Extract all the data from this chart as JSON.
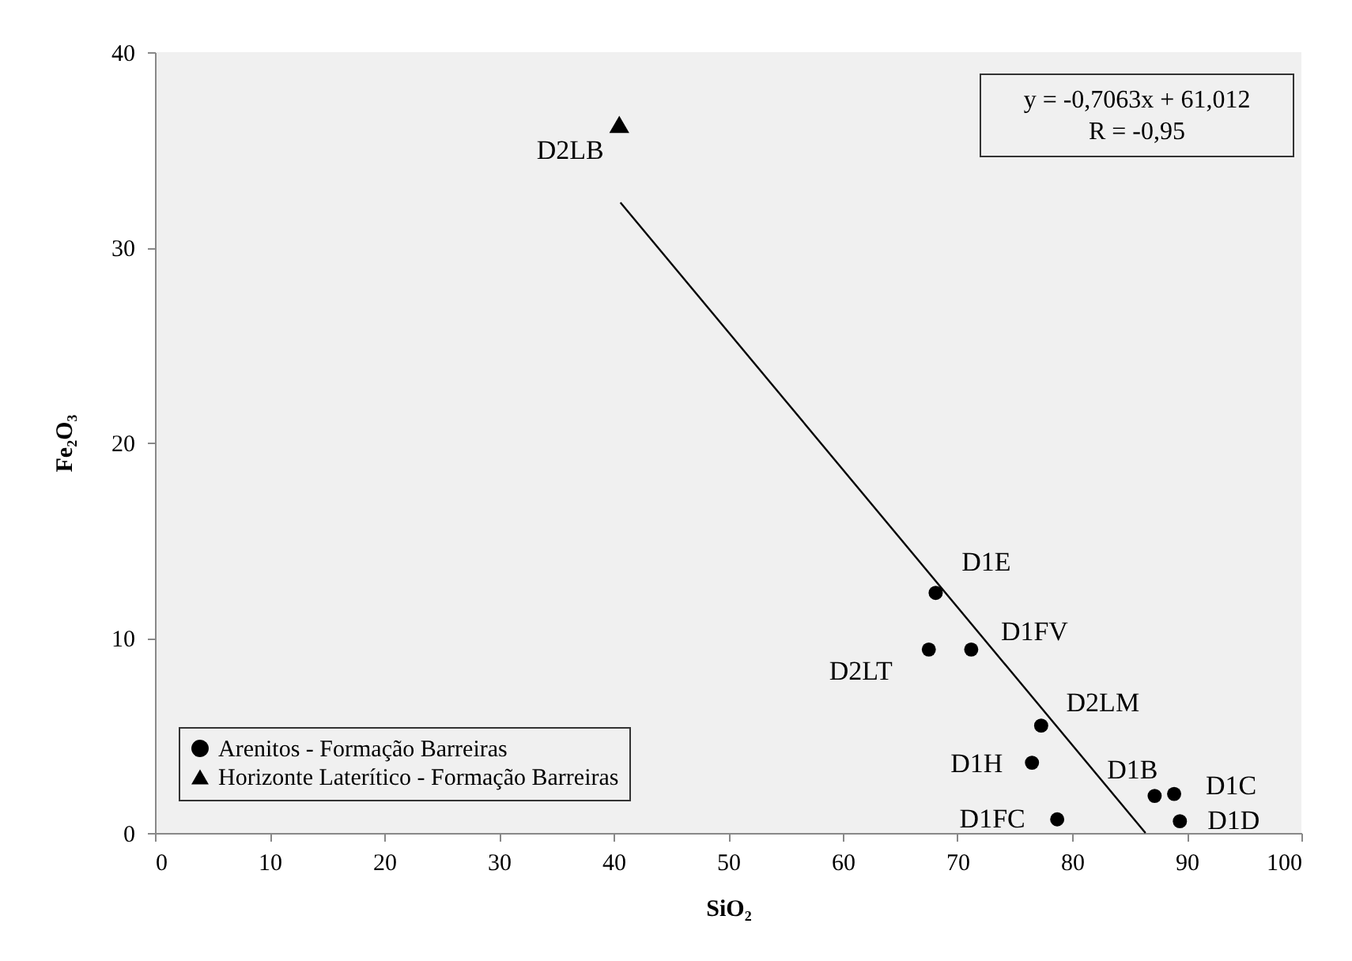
{
  "chart_data": {
    "type": "scatter",
    "xlabel": "SiO₂",
    "ylabel": "Fe₂O₃",
    "xlim": [
      0,
      100
    ],
    "xticks": [
      0,
      10,
      20,
      30,
      40,
      50,
      60,
      70,
      80,
      90,
      100
    ],
    "ylim": [
      0,
      40
    ],
    "yticks": [
      0,
      10,
      20,
      30,
      40
    ],
    "grid": false,
    "legend": "bottom left",
    "series": [
      {
        "name": "Arenitos - Formação Barreiras",
        "color": "#000000",
        "marker": "circle",
        "x": [
          68.1,
          67.5,
          71.2,
          77.3,
          76.5,
          78.7,
          87.2,
          88.9,
          89.4
        ],
        "values": [
          12.3,
          9.4,
          9.4,
          5.5,
          3.6,
          0.7,
          1.9,
          2.0,
          0.6
        ],
        "value_labels": [
          "D1E",
          "D2LT",
          "D1FV",
          "D2LM",
          "D1H",
          "D1FC",
          "D1B",
          "D1C",
          "D1D"
        ]
      },
      {
        "name": "Horizonte Laterítico - Formação Barreiras",
        "color": "#000000",
        "marker": "triangle",
        "x": [
          40.5
        ],
        "values": [
          36.3
        ],
        "value_labels": [
          "D2LB"
        ]
      },
      {
        "type": "line",
        "color": "#000000",
        "x": [
          40.6,
          86.4
        ],
        "values": [
          32.3,
          0.0
        ]
      }
    ],
    "annotations": [
      "y = -0,7063x + 61,012",
      "R = -0,95"
    ]
  }
}
